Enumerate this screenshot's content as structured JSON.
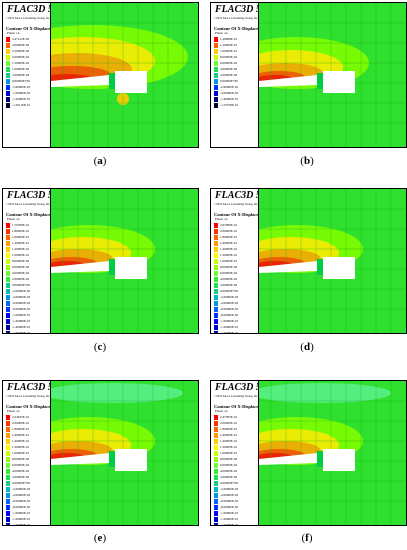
{
  "brand": "FLAC3D 5.00",
  "copyright": "©2012 Itasca Consulting Group, Inc.",
  "contour_title": "Contour Of X-Displacement",
  "plane": "Plane: on",
  "panels": [
    {
      "label": "a",
      "values": [
        "3.47122E-02",
        "3.00000E-02",
        "2.50000E-02",
        "2.00000E-02",
        "1.50000E-02",
        "1.00000E-02",
        "5.00000E-03",
        "0.00000E+00",
        "-5.00000E-03",
        "-1.00000E-02",
        "-1.20000E-01",
        "-1.56116E-01"
      ]
    },
    {
      "label": "b",
      "values": [
        "1.29998E-01",
        "1.20000E-01",
        "1.00000E-01",
        "8.00000E-02",
        "6.00000E-02",
        "4.00000E-02",
        "2.00000E-02",
        "0.00000E+00",
        "-2.00000E-02",
        "-4.00000E-02",
        "-1.40000E-01",
        "-1.53578E-01"
      ]
    },
    {
      "label": "c",
      "values": [
        "1.79780E-01",
        "1.80000E-01",
        "1.60000E-01",
        "1.40000E-01",
        "1.20000E-01",
        "1.00000E-01",
        "8.00000E-02",
        "6.00000E-02",
        "4.00000E-02",
        "2.00000E-02",
        "0.00000E+00",
        "-2.00000E-02",
        "-4.00000E-02",
        "-6.00000E-02",
        "-8.00000E-02",
        "-1.00000E-01",
        "-1.20000E-01",
        "-1.40000E-01",
        "-1.60000E-01",
        "-1.80000E-01",
        "-1.98735E-01"
      ]
    },
    {
      "label": "d",
      "values": [
        "2.07980E-01",
        "2.00000E-01",
        "1.80000E-01",
        "1.60000E-01",
        "1.40000E-01",
        "1.20000E-01",
        "1.00000E-01",
        "8.00000E-02",
        "6.00000E-02",
        "4.00000E-02",
        "2.00000E-02",
        "0.00000E+00",
        "-2.00000E-02",
        "-4.00000E-02",
        "-6.00000E-02",
        "-8.00000E-02",
        "-1.00000E-01",
        "-1.20000E-01",
        "-1.40000E-01",
        "-1.60000E-01",
        "-1.76000E-01",
        "-1.92585E-01"
      ]
    },
    {
      "label": "e",
      "values": [
        "2.24635E-01",
        "2.00000E-01",
        "1.80000E-01",
        "1.60000E-01",
        "1.40000E-01",
        "1.20000E-01",
        "1.00000E-01",
        "8.00000E-02",
        "6.00000E-02",
        "4.00000E-02",
        "2.00000E-02",
        "0.00000E+00",
        "-2.00000E-02",
        "-4.00000E-02",
        "-6.00000E-02",
        "-8.00000E-02",
        "-1.00000E-01",
        "-1.20000E-01",
        "-1.40000E-01",
        "-1.60000E-01",
        "-1.80000E-01",
        "-1.95465E-01"
      ]
    },
    {
      "label": "f",
      "values": [
        "2.47585E-01",
        "2.00000E-01",
        "1.80000E-01",
        "1.60000E-01",
        "1.40000E-01",
        "1.20000E-01",
        "1.00000E-01",
        "8.00000E-02",
        "6.00000E-02",
        "4.00000E-02",
        "2.00000E-02",
        "0.00000E+00",
        "-2.00000E-02",
        "-4.00000E-02",
        "-6.00000E-02",
        "-8.00000E-02",
        "-1.00000E-01",
        "-1.20000E-01",
        "-1.40000E-01",
        "-1.60000E-01",
        "-1.80000E-01",
        "-2.04775E-01"
      ]
    }
  ],
  "colors": {
    "ramp": [
      "#ff0000",
      "#ff3300",
      "#ff6600",
      "#ff9900",
      "#ffcc00",
      "#ffff00",
      "#ccff00",
      "#99ff00",
      "#66ff33",
      "#33ee33",
      "#22dd55",
      "#11cc88",
      "#00bbbb",
      "#0099dd",
      "#0066ff",
      "#0033ff",
      "#0000ff",
      "#0000cc",
      "#000099",
      "#000077",
      "#000055",
      "#000033"
    ],
    "background": "#2fe02f",
    "mesh": "#1fa51f",
    "excavation": "#ffffff"
  }
}
